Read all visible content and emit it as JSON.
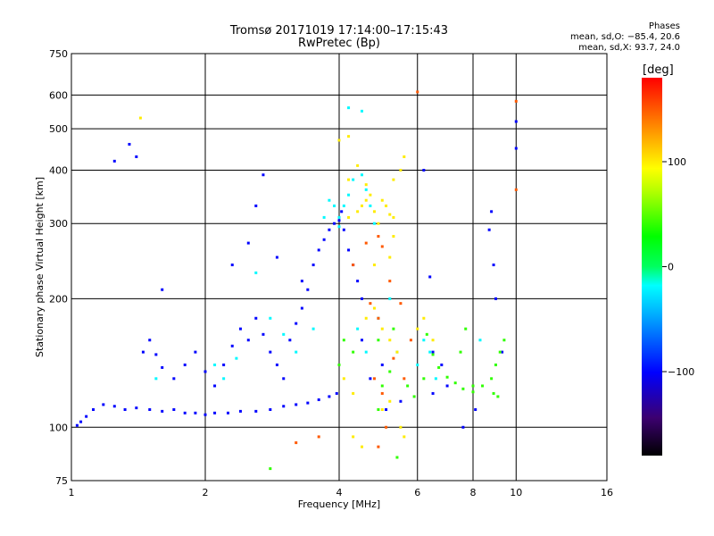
{
  "header": {
    "title": "Tromsø 20171019 17:14:00–17:15:43",
    "subtitle": "RwPretec (Bp)",
    "stats_title": "Phases",
    "stats_o": "mean, sd,O: −85.4, 20.6",
    "stats_x": "mean, sd,X:  93.7, 24.0"
  },
  "colorbar": {
    "label": "[deg]",
    "ticks": [
      {
        "value": 100,
        "label": "100"
      },
      {
        "value": 0,
        "label": "0"
      },
      {
        "value": -100,
        "label": "−100"
      }
    ],
    "range": [
      -180,
      180
    ]
  },
  "chart_data": {
    "type": "scatter",
    "title": "Tromsø 20171019 17:14:00–17:15:43",
    "subtitle": "RwPretec (Bp)",
    "xlabel": "Frequency [MHz]",
    "ylabel": "Stationary phase Virtual Height [km]",
    "xscale": "log",
    "yscale": "log",
    "xlim": [
      1,
      16
    ],
    "ylim": [
      75,
      750
    ],
    "xticks": [
      1,
      2,
      4,
      6,
      8,
      10,
      16
    ],
    "xtick_labels": [
      "1",
      "2",
      "4",
      "6",
      "8",
      "10",
      "16"
    ],
    "yticks": [
      75,
      100,
      200,
      300,
      400,
      500,
      600,
      750
    ],
    "ytick_labels": [
      "75",
      "100",
      "200",
      "300",
      "400",
      "500",
      "600",
      "750"
    ],
    "grid": true,
    "color_scale": "phase [deg], −180 to 180, rainbow",
    "series": [
      {
        "phase": -100,
        "points": [
          [
            1.03,
            101
          ],
          [
            1.05,
            103
          ],
          [
            1.08,
            106
          ],
          [
            1.12,
            110
          ],
          [
            1.18,
            113
          ],
          [
            1.25,
            112
          ],
          [
            1.32,
            110
          ],
          [
            1.4,
            111
          ],
          [
            1.5,
            110
          ],
          [
            1.6,
            109
          ],
          [
            1.7,
            110
          ],
          [
            1.8,
            108
          ],
          [
            1.9,
            108
          ],
          [
            2.0,
            107
          ],
          [
            2.1,
            108
          ],
          [
            2.25,
            108
          ],
          [
            2.4,
            109
          ],
          [
            2.6,
            109
          ],
          [
            2.8,
            110
          ],
          [
            3.0,
            112
          ],
          [
            3.2,
            113
          ],
          [
            3.4,
            114
          ],
          [
            3.6,
            116
          ],
          [
            3.8,
            118
          ],
          [
            3.95,
            120
          ],
          [
            1.45,
            150
          ],
          [
            1.5,
            160
          ],
          [
            1.55,
            148
          ],
          [
            1.6,
            138
          ],
          [
            1.7,
            130
          ],
          [
            1.8,
            140
          ],
          [
            1.9,
            150
          ],
          [
            2.0,
            135
          ],
          [
            2.1,
            125
          ],
          [
            2.2,
            140
          ],
          [
            2.3,
            155
          ],
          [
            2.4,
            170
          ],
          [
            2.5,
            160
          ],
          [
            2.6,
            180
          ],
          [
            2.7,
            165
          ],
          [
            2.8,
            150
          ],
          [
            2.9,
            140
          ],
          [
            3.0,
            130
          ],
          [
            3.1,
            160
          ],
          [
            3.2,
            175
          ],
          [
            3.3,
            190
          ],
          [
            3.4,
            210
          ],
          [
            3.5,
            240
          ],
          [
            3.6,
            260
          ],
          [
            3.7,
            275
          ],
          [
            3.8,
            290
          ],
          [
            3.9,
            300
          ],
          [
            4.0,
            305
          ],
          [
            4.05,
            320
          ],
          [
            4.1,
            290
          ],
          [
            4.2,
            260
          ],
          [
            4.3,
            240
          ],
          [
            4.4,
            220
          ],
          [
            4.5,
            200
          ],
          [
            2.5,
            270
          ],
          [
            2.6,
            330
          ],
          [
            2.7,
            390
          ],
          [
            2.9,
            250
          ],
          [
            3.3,
            220
          ],
          [
            1.4,
            430
          ],
          [
            1.35,
            460
          ],
          [
            1.25,
            420
          ],
          [
            1.6,
            210
          ],
          [
            2.3,
            240
          ],
          [
            5.1,
            110
          ],
          [
            5.5,
            115
          ],
          [
            6.5,
            120
          ],
          [
            7.0,
            125
          ],
          [
            7.6,
            100
          ],
          [
            8.1,
            110
          ],
          [
            8.8,
            320
          ],
          [
            8.7,
            290
          ],
          [
            8.9,
            240
          ],
          [
            9.0,
            200
          ],
          [
            9.3,
            150
          ],
          [
            10.0,
            450
          ],
          [
            10.0,
            520
          ],
          [
            6.2,
            400
          ],
          [
            6.4,
            225
          ],
          [
            6.5,
            150
          ],
          [
            6.8,
            140
          ],
          [
            4.5,
            160
          ],
          [
            4.7,
            130
          ],
          [
            5.0,
            140
          ]
        ]
      },
      {
        "phase": -20,
        "points": [
          [
            2.6,
            230
          ],
          [
            2.8,
            180
          ],
          [
            3.0,
            165
          ],
          [
            3.2,
            150
          ],
          [
            3.5,
            170
          ],
          [
            3.7,
            310
          ],
          [
            3.8,
            340
          ],
          [
            3.9,
            330
          ],
          [
            4.0,
            310
          ],
          [
            4.0,
            295
          ],
          [
            4.1,
            330
          ],
          [
            4.2,
            350
          ],
          [
            4.3,
            380
          ],
          [
            4.5,
            390
          ],
          [
            4.6,
            360
          ],
          [
            4.7,
            330
          ],
          [
            4.8,
            300
          ],
          [
            4.4,
            170
          ],
          [
            4.6,
            150
          ],
          [
            4.9,
            180
          ],
          [
            5.2,
            200
          ],
          [
            5.4,
            150
          ],
          [
            4.2,
            560
          ],
          [
            4.5,
            550
          ],
          [
            6.0,
            140
          ],
          [
            6.2,
            160
          ],
          [
            6.4,
            150
          ],
          [
            6.6,
            130
          ],
          [
            2.1,
            140
          ],
          [
            2.2,
            130
          ],
          [
            2.35,
            145
          ],
          [
            1.55,
            130
          ],
          [
            8.3,
            160
          ]
        ]
      },
      {
        "phase": 40,
        "points": [
          [
            4.0,
            140
          ],
          [
            4.1,
            160
          ],
          [
            4.3,
            150
          ],
          [
            4.9,
            160
          ],
          [
            5.3,
            170
          ],
          [
            6.3,
            165
          ],
          [
            6.5,
            148
          ],
          [
            6.7,
            138
          ],
          [
            7.0,
            131
          ],
          [
            7.3,
            127
          ],
          [
            7.6,
            123
          ],
          [
            8.0,
            121
          ],
          [
            8.4,
            125
          ],
          [
            8.8,
            130
          ],
          [
            9.0,
            140
          ],
          [
            9.2,
            150
          ],
          [
            9.4,
            160
          ],
          [
            8.9,
            120
          ],
          [
            9.1,
            118
          ],
          [
            8.0,
            125
          ],
          [
            7.5,
            150
          ],
          [
            7.7,
            170
          ],
          [
            6.2,
            130
          ],
          [
            5.7,
            125
          ],
          [
            5.9,
            118
          ],
          [
            4.9,
            110
          ],
          [
            5.0,
            125
          ],
          [
            5.2,
            135
          ],
          [
            2.8,
            80
          ],
          [
            5.4,
            85
          ]
        ]
      },
      {
        "phase": 100,
        "points": [
          [
            4.2,
            310
          ],
          [
            4.4,
            320
          ],
          [
            4.5,
            330
          ],
          [
            4.6,
            340
          ],
          [
            4.7,
            350
          ],
          [
            4.8,
            320
          ],
          [
            4.9,
            300
          ],
          [
            5.0,
            340
          ],
          [
            5.1,
            330
          ],
          [
            5.2,
            315
          ],
          [
            5.3,
            310
          ],
          [
            5.3,
            380
          ],
          [
            5.5,
            400
          ],
          [
            5.6,
            430
          ],
          [
            5.2,
            250
          ],
          [
            5.3,
            280
          ],
          [
            4.2,
            380
          ],
          [
            4.4,
            410
          ],
          [
            4.6,
            370
          ],
          [
            4.8,
            240
          ],
          [
            5.0,
            170
          ],
          [
            5.2,
            160
          ],
          [
            5.4,
            150
          ],
          [
            4.1,
            130
          ],
          [
            4.3,
            120
          ],
          [
            4.6,
            180
          ],
          [
            4.8,
            190
          ],
          [
            5.0,
            110
          ],
          [
            5.2,
            115
          ],
          [
            4.5,
            90
          ],
          [
            4.3,
            95
          ],
          [
            5.5,
            100
          ],
          [
            5.6,
            95
          ],
          [
            6.0,
            170
          ],
          [
            6.2,
            180
          ],
          [
            6.5,
            160
          ],
          [
            4.2,
            480
          ],
          [
            4.0,
            470
          ],
          [
            1.43,
            530
          ]
        ]
      },
      {
        "phase": 150,
        "points": [
          [
            4.8,
            130
          ],
          [
            5.0,
            120
          ],
          [
            5.3,
            145
          ],
          [
            5.6,
            130
          ],
          [
            5.8,
            160
          ],
          [
            4.6,
            270
          ],
          [
            4.9,
            280
          ],
          [
            5.0,
            265
          ],
          [
            5.2,
            220
          ],
          [
            4.7,
            195
          ],
          [
            4.9,
            180
          ],
          [
            5.5,
            195
          ],
          [
            6.0,
            610
          ],
          [
            10.0,
            580
          ],
          [
            10.0,
            360
          ],
          [
            4.3,
            240
          ],
          [
            4.9,
            90
          ],
          [
            5.1,
            100
          ],
          [
            3.2,
            92
          ],
          [
            3.6,
            95
          ]
        ]
      }
    ]
  }
}
